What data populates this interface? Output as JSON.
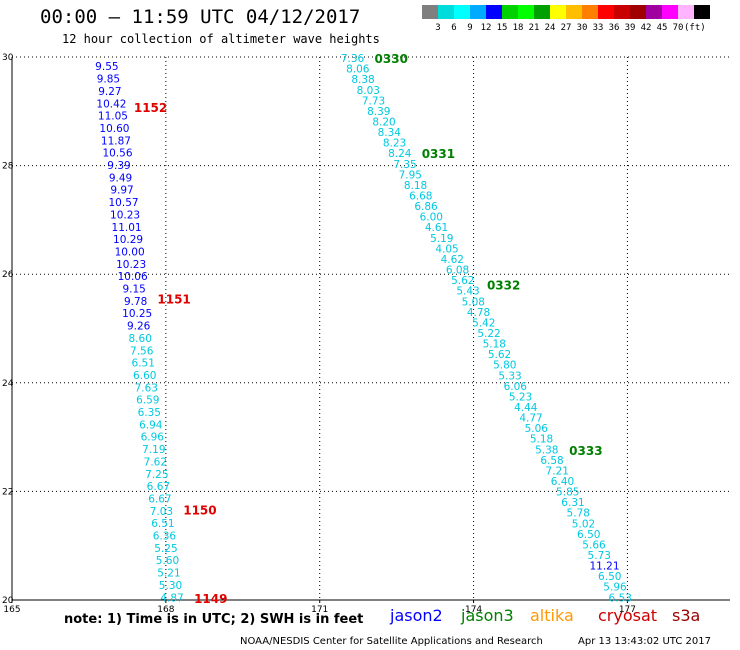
{
  "header": {
    "title": "00:00 – 11:59 UTC 04/12/2017",
    "subtitle": "12 hour collection of altimeter wave heights"
  },
  "scale": {
    "colors": [
      "#7f7f7f",
      "#00dcdc",
      "#00ffff",
      "#00aaff",
      "#0000ff",
      "#00d200",
      "#00ff00",
      "#00a000",
      "#ffff00",
      "#ffbe00",
      "#ff8000",
      "#ff0000",
      "#c80000",
      "#a00000",
      "#a000a0",
      "#ff00ff",
      "#ffb4ff",
      "#000000"
    ],
    "labels": [
      "3",
      "6",
      "9",
      "12",
      "15",
      "18",
      "21",
      "24",
      "27",
      "30",
      "33",
      "36",
      "39",
      "42",
      "45",
      "70",
      "(ft)"
    ]
  },
  "footer": {
    "note": "note: 1) Time is in UTC; 2) SWH is in feet",
    "credit": "NOAA/NESDIS Center for Satellite Applications and Research",
    "stamp": "Apr 13 13:43:02 UTC 2017"
  },
  "legend": [
    {
      "name": "jason2",
      "color": "#0000ff"
    },
    {
      "name": "jason3",
      "color": "#008000"
    },
    {
      "name": "altika",
      "color": "#ff9900"
    },
    {
      "name": "cryosat",
      "color": "#cc0000"
    },
    {
      "name": "s3a",
      "color": "#990000"
    }
  ],
  "chart_data": {
    "type": "scatter",
    "xlim": [
      165,
      179
    ],
    "ylim": [
      20,
      30
    ],
    "x_ticks": [
      "165",
      "168",
      "171",
      "174",
      "177"
    ],
    "y_ticks": [
      "20",
      "22",
      "24",
      "26",
      "28",
      "30"
    ],
    "grid": true,
    "tracks": [
      {
        "satellite": "jason2",
        "x_start": 166.85,
        "x_end": 168.12,
        "y_start": 29.83,
        "y_end": 20.05,
        "values": [
          "9.55",
          "9.85",
          "9.27",
          "10.42",
          "11.05",
          "10.60",
          "11.87",
          "10.56",
          "9.39",
          "9.49",
          "9.97",
          "10.57",
          "10.23",
          "11.01",
          "10.29",
          "10.00",
          "10.23",
          "10.06",
          "9.15",
          "9.78",
          "10.25",
          "9.26",
          "8.60",
          "7.56",
          "6.51",
          "6.60",
          "7.63",
          "6.59",
          "6.35",
          "6.94",
          "6.96",
          "7.19",
          "7.62",
          "7.25",
          "6.67",
          "6.67",
          "7.03",
          "6.51",
          "6.36",
          "5.25",
          "5.60",
          "5.21",
          "5.30",
          "4.87"
        ],
        "time_labels": [
          {
            "text": "1152",
            "y": 29.08
          },
          {
            "text": "1151",
            "y": 25.55
          },
          {
            "text": "1150",
            "y": 21.67
          },
          {
            "text": "1149",
            "y": 20.04
          }
        ]
      },
      {
        "satellite": "jason3",
        "x_start": 171.64,
        "x_end": 176.86,
        "y_start": 29.98,
        "y_end": 20.05,
        "values": [
          "7.36",
          "8.06",
          "8.38",
          "8.03",
          "7.73",
          "8.39",
          "8.20",
          "8.34",
          "8.23",
          "8.24",
          "7.35",
          "7.95",
          "8.18",
          "6.68",
          "6.86",
          "6.00",
          "4.61",
          "5.19",
          "4.05",
          "4.62",
          "6.08",
          "5.62",
          "5.43",
          "5.08",
          "4.78",
          "5.42",
          "5.22",
          "5.18",
          "5.62",
          "5.80",
          "5.33",
          "6.06",
          "5.23",
          "4.44",
          "4.77",
          "5.06",
          "5.18",
          "5.38",
          "6.58",
          "7.21",
          "6.40",
          "5.85",
          "6.31",
          "5.78",
          "5.02",
          "6.50",
          "5.66",
          "5.73",
          "11.21",
          "6.50",
          "5.96",
          "6.53"
        ],
        "time_labels": [
          {
            "text": "0330",
            "y": 29.98
          },
          {
            "text": "0331",
            "y": 28.23
          },
          {
            "text": "0332",
            "y": 25.81
          },
          {
            "text": "0333",
            "y": 22.76
          }
        ]
      }
    ]
  }
}
